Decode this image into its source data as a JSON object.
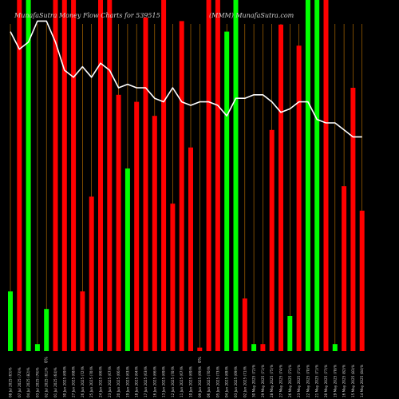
{
  "chart_data": {
    "type": "bar",
    "title": "MunafaSutra Money Flow Charts for 539515",
    "subtitle": "(MMM) MunafaSutra.com",
    "ylim": [
      0,
      100
    ],
    "colors": {
      "up": "#00ff00",
      "down": "#ff0000",
      "grid": "#c87800",
      "line": "#ffffff",
      "background": "#000000"
    },
    "categories": [
      "08 Jul 2025 (65)%",
      "07 Jul 2025 (73)%",
      "04 Jul 2025 (82)%",
      "03 Jul 2025 (76)%",
      "02 Jul 2025 (61)%",
      "01 Jul 2025 (64)%",
      "30 Jun 2025 (69)%",
      "27 Jun 2025 (68)%",
      "26 Jun 2025 (72)%",
      "25 Jun 2025 (70)%",
      "24 Jun 2025 (66)%",
      "23 Jun 2025 (67)%",
      "20 Jun 2025 (66)%",
      "19 Jun 2025 (63)%",
      "18 Jun 2025 (64)%",
      "17 Jun 2025 (63)%",
      "16 Jun 2025 (66)%",
      "13 Jun 2025 (69)%",
      "12 Jun 2025 (70)%",
      "11 Jun 2025 (67)%",
      "10 Jun 2025 (69)%",
      "09 Jun 2025 (69)%",
      "06 Jun 2025 (70)%",
      "05 Jun 2025 (73)%",
      "04 Jun 2025 (69)%",
      "03 Jun 2025 (69)%",
      "02 Jun 2025 (71)%",
      "30 May 2025 (72)%",
      "29 May 2025 (71)%",
      "28 May 2025 (75)%",
      "27 May 2025 (74)%",
      "26 May 2025 (72)%",
      "23 May 2025 (71)%",
      "22 May 2025 (70)%",
      "21 May 2025 (71)%",
      "20 May 2025 (77)%",
      "19 May 2025 (78)%",
      "16 May 2025 (82)%",
      "15 May 2025 (83)%",
      "14 May 2025 (84)%"
    ],
    "bars": [
      {
        "color": "up",
        "value": 17
      },
      {
        "color": "down",
        "value": 100
      },
      {
        "color": "up",
        "value": 100
      },
      {
        "color": "up",
        "value": 2
      },
      {
        "color": "up",
        "value": 12
      },
      {
        "color": "down",
        "value": 100
      },
      {
        "color": "down",
        "value": 100
      },
      {
        "color": "down",
        "value": 100
      },
      {
        "color": "down",
        "value": 17
      },
      {
        "color": "down",
        "value": 44
      },
      {
        "color": "down",
        "value": 100
      },
      {
        "color": "down",
        "value": 100
      },
      {
        "color": "down",
        "value": 73
      },
      {
        "color": "up",
        "value": 52
      },
      {
        "color": "down",
        "value": 71
      },
      {
        "color": "down",
        "value": 95
      },
      {
        "color": "down",
        "value": 67
      },
      {
        "color": "down",
        "value": 100
      },
      {
        "color": "down",
        "value": 42
      },
      {
        "color": "down",
        "value": 94
      },
      {
        "color": "down",
        "value": 58
      },
      {
        "color": "down",
        "value": 1
      },
      {
        "color": "down",
        "value": 100
      },
      {
        "color": "down",
        "value": 100
      },
      {
        "color": "up",
        "value": 91
      },
      {
        "color": "up",
        "value": 100
      },
      {
        "color": "down",
        "value": 15
      },
      {
        "color": "up",
        "value": 2
      },
      {
        "color": "down",
        "value": 2
      },
      {
        "color": "down",
        "value": 63
      },
      {
        "color": "down",
        "value": 93
      },
      {
        "color": "up",
        "value": 10
      },
      {
        "color": "down",
        "value": 87
      },
      {
        "color": "up",
        "value": 100
      },
      {
        "color": "up",
        "value": 100
      },
      {
        "color": "down",
        "value": 100
      },
      {
        "color": "up",
        "value": 2
      },
      {
        "color": "down",
        "value": 47
      },
      {
        "color": "down",
        "value": 75
      },
      {
        "color": "down",
        "value": 40
      }
    ],
    "line": [
      {
        "x": 0,
        "y": 91
      },
      {
        "x": 1,
        "y": 86
      },
      {
        "x": 2,
        "y": 88
      },
      {
        "x": 3,
        "y": 94
      },
      {
        "x": 4,
        "y": 94
      },
      {
        "x": 5,
        "y": 88
      },
      {
        "x": 6,
        "y": 80
      },
      {
        "x": 7,
        "y": 78
      },
      {
        "x": 8,
        "y": 81
      },
      {
        "x": 9,
        "y": 78
      },
      {
        "x": 10,
        "y": 82
      },
      {
        "x": 11,
        "y": 80
      },
      {
        "x": 12,
        "y": 75
      },
      {
        "x": 13,
        "y": 76
      },
      {
        "x": 14,
        "y": 75
      },
      {
        "x": 15,
        "y": 75
      },
      {
        "x": 16,
        "y": 72
      },
      {
        "x": 17,
        "y": 71
      },
      {
        "x": 18,
        "y": 75
      },
      {
        "x": 19,
        "y": 71
      },
      {
        "x": 20,
        "y": 70
      },
      {
        "x": 21,
        "y": 71
      },
      {
        "x": 22,
        "y": 71
      },
      {
        "x": 23,
        "y": 70
      },
      {
        "x": 24,
        "y": 67
      },
      {
        "x": 25,
        "y": 72
      },
      {
        "x": 26,
        "y": 72
      },
      {
        "x": 27,
        "y": 73
      },
      {
        "x": 28,
        "y": 73
      },
      {
        "x": 29,
        "y": 71
      },
      {
        "x": 30,
        "y": 68
      },
      {
        "x": 31,
        "y": 69
      },
      {
        "x": 32,
        "y": 71
      },
      {
        "x": 33,
        "y": 71
      },
      {
        "x": 34,
        "y": 66
      },
      {
        "x": 35,
        "y": 65
      },
      {
        "x": 36,
        "y": 65
      },
      {
        "x": 37,
        "y": 63
      },
      {
        "x": 38,
        "y": 61
      },
      {
        "x": 39,
        "y": 61
      }
    ],
    "markers": [
      {
        "index": 4,
        "label": "0%"
      },
      {
        "index": 21,
        "label": "0%"
      }
    ],
    "grid": true
  }
}
